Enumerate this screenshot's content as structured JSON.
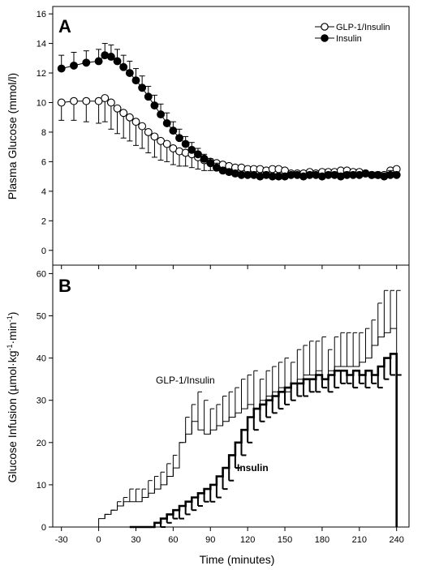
{
  "chart_data": [
    {
      "panel": "A",
      "type": "line",
      "ylabel": "Plasma Glucose (mmol/l)",
      "xlim": [
        -30,
        240
      ],
      "ylim": [
        -1,
        16.5
      ],
      "yticks": [
        0,
        2,
        4,
        6,
        8,
        10,
        12,
        14,
        16
      ],
      "legend_position": "top-right",
      "series": [
        {
          "name": "GLP-1/Insulin",
          "marker": "open-circle",
          "x": [
            -30,
            -20,
            -10,
            0,
            5,
            10,
            15,
            20,
            25,
            30,
            35,
            40,
            45,
            50,
            55,
            60,
            65,
            70,
            75,
            80,
            85,
            90,
            95,
            100,
            105,
            110,
            115,
            120,
            125,
            130,
            135,
            140,
            145,
            150,
            155,
            160,
            165,
            170,
            175,
            180,
            185,
            190,
            195,
            200,
            205,
            210,
            215,
            220,
            225,
            230,
            235,
            240
          ],
          "y": [
            10.0,
            10.1,
            10.1,
            10.1,
            10.3,
            10.0,
            9.6,
            9.3,
            9.0,
            8.7,
            8.4,
            8.0,
            7.7,
            7.4,
            7.2,
            6.9,
            6.7,
            6.6,
            6.5,
            6.3,
            6.1,
            6.0,
            5.9,
            5.8,
            5.7,
            5.6,
            5.6,
            5.5,
            5.5,
            5.5,
            5.4,
            5.5,
            5.5,
            5.4,
            5.2,
            5.2,
            5.2,
            5.3,
            5.2,
            5.3,
            5.3,
            5.3,
            5.4,
            5.4,
            5.3,
            5.3,
            5.2,
            5.1,
            5.1,
            5.1,
            5.4,
            5.5
          ],
          "error": [
            1.2,
            1.3,
            1.4,
            1.5,
            1.6,
            1.8,
            1.7,
            1.7,
            1.6,
            1.6,
            1.5,
            1.4,
            1.4,
            1.3,
            1.2,
            1.1,
            1.0,
            0.9,
            0.9,
            0.8,
            0.7,
            0.6,
            0.5,
            0.5,
            0.4,
            0.4,
            0.3,
            0.3,
            0.3,
            0.3,
            0.3,
            0.3,
            0.3,
            0.2,
            0.2,
            0.2,
            0.2,
            0.2,
            0.2,
            0.2,
            0.2,
            0.2,
            0.2,
            0.2,
            0.2,
            0.2,
            0.2,
            0.2,
            0.2,
            0.2,
            0.2,
            0.2
          ]
        },
        {
          "name": "Insulin",
          "marker": "filled-circle",
          "x": [
            -30,
            -20,
            -10,
            0,
            5,
            10,
            15,
            20,
            25,
            30,
            35,
            40,
            45,
            50,
            55,
            60,
            65,
            70,
            75,
            80,
            85,
            90,
            95,
            100,
            105,
            110,
            115,
            120,
            125,
            130,
            135,
            140,
            145,
            150,
            155,
            160,
            165,
            170,
            175,
            180,
            185,
            190,
            195,
            200,
            205,
            210,
            215,
            220,
            225,
            230,
            235,
            240
          ],
          "y": [
            12.3,
            12.5,
            12.7,
            12.8,
            13.2,
            13.1,
            12.8,
            12.4,
            12.0,
            11.5,
            11.0,
            10.4,
            9.8,
            9.2,
            8.6,
            8.1,
            7.6,
            7.2,
            6.8,
            6.5,
            6.2,
            5.9,
            5.6,
            5.4,
            5.3,
            5.2,
            5.1,
            5.1,
            5.1,
            5.0,
            5.1,
            5.0,
            5.0,
            5.0,
            5.1,
            5.1,
            5.0,
            5.1,
            5.1,
            5.0,
            5.1,
            5.1,
            5.0,
            5.1,
            5.1,
            5.1,
            5.2,
            5.1,
            5.1,
            5.0,
            5.1,
            5.1
          ],
          "error": [
            0.9,
            0.9,
            0.8,
            0.8,
            0.8,
            0.8,
            0.8,
            0.8,
            0.8,
            0.8,
            0.8,
            0.7,
            0.7,
            0.7,
            0.7,
            0.6,
            0.6,
            0.5,
            0.5,
            0.4,
            0.3,
            0.3,
            0.3,
            0.2,
            0.2,
            0.2,
            0.2,
            0.2,
            0.2,
            0.2,
            0.2,
            0.2,
            0.2,
            0.2,
            0.2,
            0.2,
            0.2,
            0.2,
            0.2,
            0.2,
            0.2,
            0.2,
            0.2,
            0.2,
            0.2,
            0.2,
            0.2,
            0.2,
            0.2,
            0.2,
            0.3,
            0.2
          ]
        }
      ]
    },
    {
      "panel": "B",
      "type": "line",
      "xlabel": "Time (minutes)",
      "ylabel_main": "Glucose Infusion (µmol·kg",
      "ylabel_sup1": "-1",
      "ylabel_mid": "·min",
      "ylabel_sup2": "-1",
      "ylabel_end": ")",
      "xlim": [
        -37,
        250
      ],
      "ylim": [
        0,
        62
      ],
      "xticks": [
        -30,
        0,
        30,
        60,
        90,
        120,
        150,
        180,
        210,
        240
      ],
      "yticks": [
        0,
        10,
        20,
        30,
        40,
        50,
        60
      ],
      "step": 5,
      "series": [
        {
          "name": "GLP-1/Insulin",
          "label_text": "GLP-1/Insulin",
          "x": [
            0,
            5,
            10,
            15,
            20,
            25,
            30,
            35,
            40,
            45,
            50,
            55,
            60,
            65,
            70,
            75,
            80,
            85,
            90,
            95,
            100,
            105,
            110,
            115,
            120,
            125,
            130,
            135,
            140,
            145,
            150,
            155,
            160,
            165,
            170,
            175,
            180,
            185,
            190,
            195,
            200,
            205,
            210,
            215,
            220,
            225,
            230,
            235
          ],
          "y": [
            2,
            3,
            4,
            5,
            6,
            6,
            6,
            7,
            8,
            9,
            10,
            12,
            14,
            20,
            22,
            25,
            23,
            22,
            23,
            24,
            25,
            26,
            27,
            28,
            29,
            28,
            30,
            31,
            32,
            33,
            32,
            34,
            35,
            36,
            36,
            37,
            35,
            37,
            38,
            38,
            38,
            38,
            39,
            40,
            43,
            45,
            46,
            47
          ],
          "error": [
            1,
            1,
            2,
            2,
            3,
            3,
            3,
            4,
            4,
            4,
            5,
            5,
            6,
            6,
            7,
            7,
            7,
            6,
            6,
            7,
            7,
            7,
            8,
            8,
            8,
            7,
            7,
            7,
            7,
            7,
            7,
            8,
            8,
            8,
            8,
            8,
            7,
            8,
            8,
            8,
            8,
            8,
            8,
            9,
            10,
            11,
            10,
            9
          ]
        },
        {
          "name": "Insulin",
          "label_text": "Insulin",
          "x": [
            25,
            30,
            35,
            40,
            45,
            50,
            55,
            60,
            65,
            70,
            75,
            80,
            85,
            90,
            95,
            100,
            105,
            110,
            115,
            120,
            125,
            130,
            135,
            140,
            145,
            150,
            155,
            160,
            165,
            170,
            175,
            180,
            185,
            190,
            195,
            200,
            205,
            210,
            215,
            220,
            225,
            230,
            235
          ],
          "y": [
            0,
            0,
            0,
            0,
            1,
            2,
            3,
            4,
            5,
            6,
            7,
            8,
            9,
            10,
            12,
            14,
            17,
            20,
            23,
            26,
            28,
            29,
            30,
            31,
            32,
            33,
            34,
            34,
            35,
            35,
            36,
            35,
            36,
            37,
            37,
            36,
            37,
            36,
            37,
            36,
            38,
            40,
            41
          ],
          "error": [
            0,
            0,
            0,
            0,
            1,
            1,
            1,
            2,
            2,
            2,
            2,
            2,
            3,
            3,
            3,
            3,
            3,
            3,
            3,
            3,
            3,
            3,
            3,
            3,
            3,
            3,
            3,
            3,
            3,
            3,
            3,
            3,
            3,
            3,
            3,
            3,
            3,
            3,
            3,
            3,
            3,
            4,
            5
          ]
        }
      ]
    }
  ]
}
